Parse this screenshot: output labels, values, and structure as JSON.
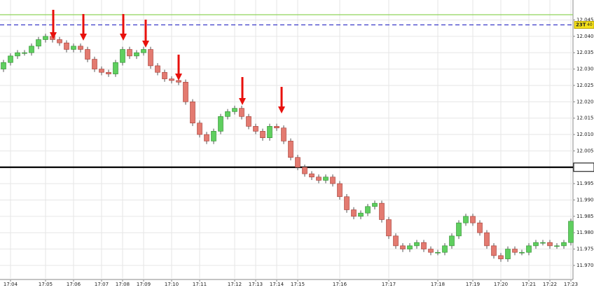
{
  "chart_data": {
    "type": "candlestick",
    "categories": [
      null,
      "17:04",
      null,
      null,
      null,
      null,
      "17:05",
      null,
      null,
      null,
      "17:06",
      null,
      null,
      null,
      "17:07",
      null,
      null,
      "17:08",
      null,
      null,
      "17:09",
      null,
      null,
      null,
      "17:10",
      null,
      null,
      null,
      "17:11",
      null,
      null,
      null,
      null,
      "17:12",
      null,
      null,
      "17:13",
      null,
      null,
      "17:14",
      null,
      null,
      "17:15",
      null,
      null,
      null,
      null,
      null,
      "17:16",
      null,
      null,
      null,
      null,
      null,
      null,
      "17:17",
      null,
      null,
      null,
      null,
      null,
      null,
      "17:18",
      null,
      null,
      null,
      null,
      "17:19",
      null,
      null,
      null,
      "17:20",
      null,
      null,
      null,
      "17:21",
      null,
      null,
      "17:22",
      null,
      null,
      "17:23"
    ],
    "candles": [
      [
        12.03,
        12.0328,
        12.0291,
        12.032
      ],
      [
        12.032,
        12.0348,
        12.0311,
        12.034
      ],
      [
        12.034,
        12.0358,
        12.0331,
        12.035
      ],
      [
        12.035,
        12.0358,
        12.0341,
        12.035
      ],
      [
        12.035,
        12.0378,
        12.0341,
        12.037
      ],
      [
        12.037,
        12.0398,
        12.0361,
        12.039
      ],
      [
        12.039,
        12.0408,
        12.0381,
        12.04
      ],
      [
        12.04,
        12.0408,
        12.0381,
        12.039
      ],
      [
        12.039,
        12.0398,
        12.0371,
        12.038
      ],
      [
        12.038,
        12.0388,
        12.0351,
        12.036
      ],
      [
        12.036,
        12.0378,
        12.0351,
        12.037
      ],
      [
        12.037,
        12.0378,
        12.0351,
        12.036
      ],
      [
        12.036,
        12.0368,
        12.0321,
        12.033
      ],
      [
        12.033,
        12.0338,
        12.0291,
        12.03
      ],
      [
        12.03,
        12.0308,
        12.0281,
        12.029
      ],
      [
        12.029,
        12.0298,
        12.0276,
        12.0285
      ],
      [
        12.0285,
        12.0328,
        12.0276,
        12.032
      ],
      [
        12.032,
        12.0368,
        12.0311,
        12.036
      ],
      [
        12.036,
        12.0368,
        12.0331,
        12.034
      ],
      [
        12.034,
        12.0358,
        12.0331,
        12.035
      ],
      [
        12.035,
        12.0368,
        12.0341,
        12.036
      ],
      [
        12.036,
        12.0368,
        12.0301,
        12.031
      ],
      [
        12.031,
        12.0318,
        12.0281,
        12.029
      ],
      [
        12.029,
        12.0298,
        12.0261,
        12.027
      ],
      [
        12.027,
        12.0278,
        12.0256,
        12.0265
      ],
      [
        12.0265,
        12.0273,
        12.0251,
        12.026
      ],
      [
        12.026,
        12.0268,
        12.0191,
        12.02
      ],
      [
        12.02,
        12.0208,
        12.0126,
        12.0135
      ],
      [
        12.0135,
        12.0143,
        12.0091,
        12.01
      ],
      [
        12.01,
        12.0108,
        12.0071,
        12.008
      ],
      [
        12.008,
        12.0118,
        12.0071,
        12.011
      ],
      [
        12.011,
        12.0163,
        12.0101,
        12.0155
      ],
      [
        12.0155,
        12.0178,
        12.0146,
        12.017
      ],
      [
        12.017,
        12.0188,
        12.0161,
        12.018
      ],
      [
        12.018,
        12.0188,
        12.0146,
        12.0155
      ],
      [
        12.0155,
        12.0163,
        12.0116,
        12.0125
      ],
      [
        12.0125,
        12.0133,
        12.0101,
        12.011
      ],
      [
        12.011,
        12.0118,
        12.0081,
        12.009
      ],
      [
        12.009,
        12.0133,
        12.0081,
        12.0125
      ],
      [
        12.0125,
        12.0133,
        12.0111,
        12.012
      ],
      [
        12.012,
        12.0128,
        12.0071,
        12.008
      ],
      [
        12.008,
        12.0088,
        12.0021,
        12.003
      ],
      [
        12.003,
        12.0038,
        11.9991,
        12.0
      ],
      [
        12.0,
        12.0008,
        11.9971,
        11.998
      ],
      [
        11.998,
        11.9988,
        11.9961,
        11.997
      ],
      [
        11.997,
        11.9978,
        11.9951,
        11.996
      ],
      [
        11.996,
        11.9978,
        11.9951,
        11.997
      ],
      [
        11.997,
        11.9978,
        11.9941,
        11.995
      ],
      [
        11.995,
        11.9958,
        11.9901,
        11.991
      ],
      [
        11.991,
        11.9918,
        11.9861,
        11.987
      ],
      [
        11.987,
        11.9878,
        11.9841,
        11.985
      ],
      [
        11.985,
        11.9868,
        11.9841,
        11.986
      ],
      [
        11.986,
        11.9888,
        11.9851,
        11.988
      ],
      [
        11.988,
        11.9898,
        11.9871,
        11.989
      ],
      [
        11.989,
        11.9898,
        11.9831,
        11.984
      ],
      [
        11.984,
        11.9848,
        11.9781,
        11.979
      ],
      [
        11.979,
        11.9798,
        11.9751,
        11.976
      ],
      [
        11.976,
        11.9768,
        11.9741,
        11.975
      ],
      [
        11.975,
        11.9768,
        11.9741,
        11.976
      ],
      [
        11.976,
        11.9778,
        11.9751,
        11.977
      ],
      [
        11.977,
        11.9778,
        11.9741,
        11.975
      ],
      [
        11.975,
        11.9758,
        11.9731,
        11.974
      ],
      [
        11.974,
        11.9748,
        11.9731,
        11.974
      ],
      [
        11.974,
        11.9768,
        11.9731,
        11.976
      ],
      [
        11.976,
        11.9798,
        11.9751,
        11.979
      ],
      [
        11.979,
        11.9838,
        11.9781,
        11.983
      ],
      [
        11.983,
        11.9858,
        11.9821,
        11.985
      ],
      [
        11.985,
        11.9858,
        11.9821,
        11.983
      ],
      [
        11.983,
        11.9838,
        11.9791,
        11.98
      ],
      [
        11.98,
        11.9808,
        11.9751,
        11.976
      ],
      [
        11.976,
        11.9768,
        11.9721,
        11.973
      ],
      [
        11.973,
        11.9738,
        11.9711,
        11.972
      ],
      [
        11.972,
        11.9758,
        11.9711,
        11.975
      ],
      [
        11.975,
        11.9758,
        11.9731,
        11.974
      ],
      [
        11.974,
        11.9748,
        11.9731,
        11.974
      ],
      [
        11.974,
        11.9768,
        11.9731,
        11.976
      ],
      [
        11.976,
        11.9778,
        11.9751,
        11.977
      ],
      [
        11.977,
        11.9778,
        11.9761,
        11.977
      ],
      [
        11.977,
        11.9778,
        11.9751,
        11.976
      ],
      [
        11.976,
        11.9768,
        11.9751,
        11.976
      ],
      [
        11.976,
        11.9778,
        11.9751,
        11.977
      ],
      [
        11.977,
        11.9843,
        11.9761,
        11.9835
      ]
    ],
    "up_color": "#5fcf5f",
    "down_color": "#e37a70",
    "ylim": [
      11.9657,
      12.0511
    ],
    "yticks": [
      {
        "value": 11.97,
        "label": "11.970"
      },
      {
        "value": 11.975,
        "label": "11.975"
      },
      {
        "value": 11.98,
        "label": "11.980"
      },
      {
        "value": 11.985,
        "label": "11.985"
      },
      {
        "value": 11.99,
        "label": "11.990"
      },
      {
        "value": 11.995,
        "label": "11.995"
      },
      {
        "value": 12.0,
        "label": "12.000"
      },
      {
        "value": 12.005,
        "label": "12.005"
      },
      {
        "value": 12.01,
        "label": "12.010"
      },
      {
        "value": 12.015,
        "label": "12.015"
      },
      {
        "value": 12.02,
        "label": "12.020"
      },
      {
        "value": 12.025,
        "label": "12.025"
      },
      {
        "value": 12.03,
        "label": "12.030"
      },
      {
        "value": 12.035,
        "label": "12.035"
      },
      {
        "value": 12.04,
        "label": "12.040"
      },
      {
        "value": 12.045,
        "label": "12.045"
      }
    ],
    "grid": true,
    "hlines": [
      {
        "value": 12.0466,
        "color": "#8fd35a",
        "style": "solid"
      },
      {
        "value": 12.0435,
        "color": "#3a3ac8",
        "style": "dashed"
      },
      {
        "value": 12.0,
        "color": "#000000",
        "style": "solid"
      }
    ],
    "marker_label": "23T",
    "counter_label": "40"
  }
}
